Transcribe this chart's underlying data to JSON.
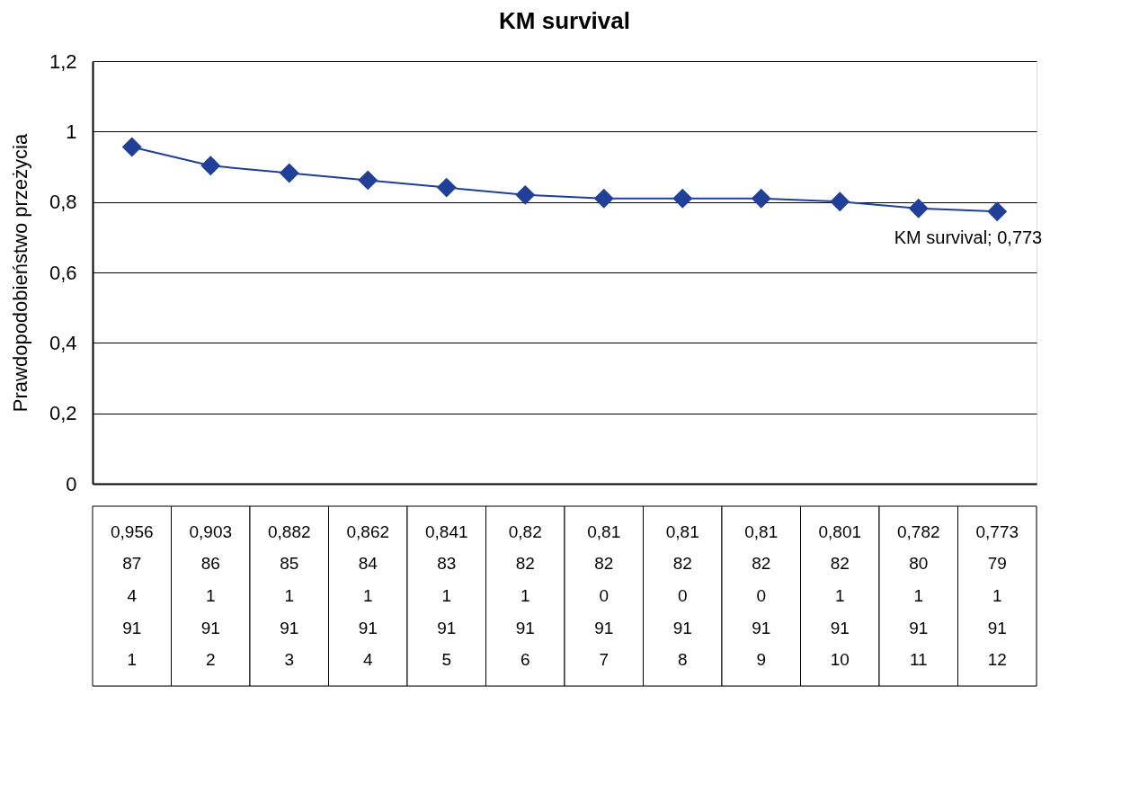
{
  "chart_data": {
    "type": "line",
    "title": "KM survival",
    "ylabel": "Prawdopodobieństwo przeżycia",
    "categories": [
      "87\n4\n91\n1",
      "86\n1\n91\n2",
      "85\n1\n91\n3",
      "84\n1\n91\n4",
      "83\n1\n91\n5",
      "82\n1\n91\n6",
      "82\n0\n91\n7",
      "82\n0\n91\n8",
      "82\n0\n91\n9",
      "82\n1\n91\n10",
      "80\n1\n91\n11",
      "79\n1\n91\n12"
    ],
    "series": [
      {
        "color": "#1f3f99",
        "values": [
          0.956,
          0.903,
          0.882,
          0.862,
          0.841,
          0.82,
          0.81,
          0.81,
          0.81,
          0.801,
          0.782,
          0.773
        ],
        "value_labels": [
          "0,956",
          "0,903",
          "0,882",
          "0,862",
          "0,841",
          "0,82",
          "0,81",
          "0,81",
          "0,81",
          "0,801",
          "0,782",
          "0,773"
        ]
      }
    ],
    "ylim": [
      0,
      1.2
    ],
    "yticks": [
      0,
      {
        "value": 0.2,
        "label": "0,2"
      },
      {
        "value": 0.4,
        "label": "0,4"
      },
      {
        "value": 0.6,
        "label": "0,6"
      },
      {
        "value": 0.8,
        "label": "0,8"
      },
      1,
      {
        "value": 1.2,
        "label": "1,2"
      }
    ],
    "annotations": [
      "KM survival; 0,773"
    ],
    "grid": "y",
    "tick_labels": "y",
    "marker": "diamond",
    "line_style": "solid",
    "data_labels": true
  }
}
